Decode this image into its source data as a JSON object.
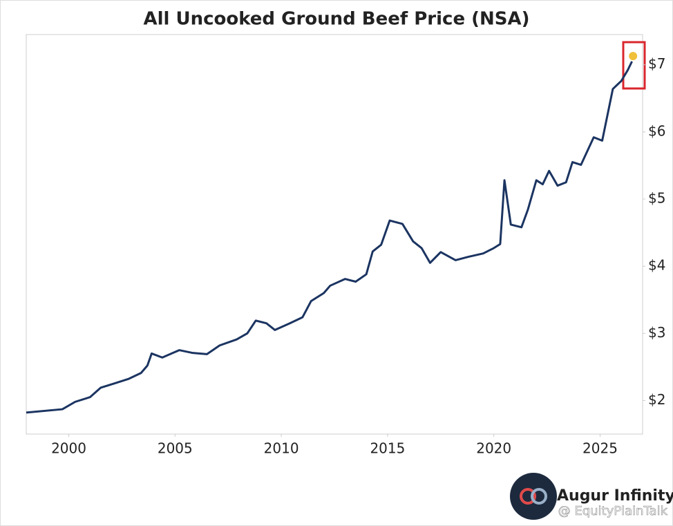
{
  "chart_data": {
    "type": "line",
    "title": "All Uncooked Ground Beef Price (NSA)",
    "x": [
      1998.0,
      1999.7,
      2000.3,
      2001.0,
      2001.5,
      2002.1,
      2002.8,
      2003.4,
      2003.7,
      2003.9,
      2004.4,
      2005.2,
      2005.8,
      2006.5,
      2007.1,
      2007.9,
      2008.4,
      2008.8,
      2009.3,
      2009.7,
      2010.4,
      2011.0,
      2011.4,
      2012.0,
      2012.3,
      2013.0,
      2013.5,
      2014.0,
      2014.3,
      2014.7,
      2015.1,
      2015.7,
      2016.2,
      2016.6,
      2017.0,
      2017.5,
      2018.2,
      2018.8,
      2019.5,
      2020.0,
      2020.3,
      2020.5,
      2020.8,
      2021.3,
      2021.6,
      2022.0,
      2022.3,
      2022.6,
      2023.0,
      2023.4,
      2023.7,
      2024.1,
      2024.7,
      2025.1,
      2025.6,
      2026.0,
      2026.3,
      2026.5
    ],
    "series": [
      {
        "color": "#1b3461",
        "values": [
          1.82,
          1.87,
          1.98,
          2.05,
          2.19,
          2.25,
          2.32,
          2.41,
          2.52,
          2.7,
          2.64,
          2.75,
          2.71,
          2.69,
          2.82,
          2.91,
          3.0,
          3.19,
          3.15,
          3.05,
          3.15,
          3.24,
          3.48,
          3.6,
          3.71,
          3.81,
          3.77,
          3.88,
          4.22,
          4.32,
          4.68,
          4.63,
          4.37,
          4.27,
          4.05,
          4.21,
          4.09,
          4.14,
          4.19,
          4.27,
          4.33,
          5.28,
          4.62,
          4.58,
          4.84,
          5.28,
          5.22,
          5.42,
          5.2,
          5.25,
          5.55,
          5.51,
          5.92,
          5.87,
          6.64,
          6.76,
          6.92,
          7.05
        ]
      }
    ],
    "highlight": {
      "x": 2026.55,
      "y": 7.13,
      "color": "#f0c03a"
    },
    "xlim": [
      1998,
      2027
    ],
    "ylim": [
      1.5,
      7.45
    ],
    "xticks": [
      2000,
      2005,
      2010,
      2015,
      2020,
      2025
    ],
    "yticks": [
      {
        "value": 2,
        "label": "$2"
      },
      {
        "value": 3,
        "label": "$3"
      },
      {
        "value": 4,
        "label": "$4"
      },
      {
        "value": 5,
        "label": "$5"
      },
      {
        "value": 6,
        "label": "$6"
      },
      {
        "value": 7,
        "label": "$7"
      }
    ],
    "brand": "Augur Infinity",
    "watermark": "@ EquityPlainTalk"
  }
}
